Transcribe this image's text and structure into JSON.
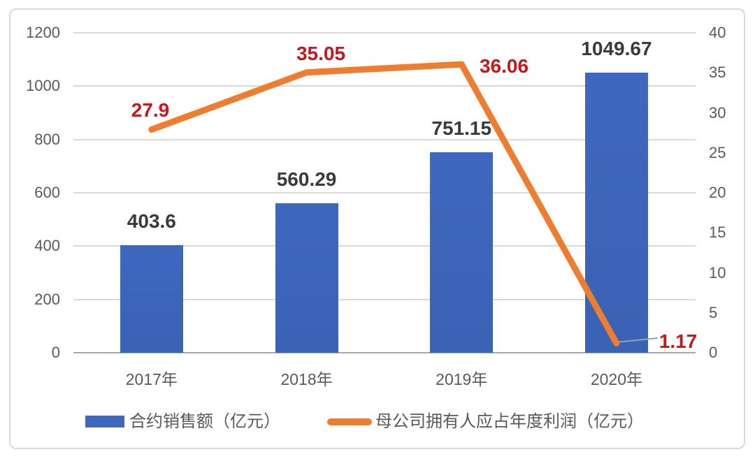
{
  "page": {
    "background": "#ffffff",
    "card_border_color": "#d9d9d9"
  },
  "chart_data": {
    "type": "bar",
    "subtype": "combo-bar-line-dual-axis",
    "categories": [
      "2017年",
      "2018年",
      "2019年",
      "2020年"
    ],
    "series": [
      {
        "name": "合约销售额（亿元）",
        "type": "bar",
        "axis": "left",
        "color": "#3e68be",
        "values": [
          403.6,
          560.29,
          751.15,
          1049.67
        ],
        "data_labels": [
          "403.6",
          "560.29",
          "751.15",
          "1049.67"
        ],
        "label_color": "#3a3a3a"
      },
      {
        "name": "母公司拥有人应占年度利润（亿元）",
        "type": "line",
        "axis": "right",
        "color": "#ed7d31",
        "values": [
          27.9,
          35.05,
          36.06,
          1.17
        ],
        "data_labels": [
          "27.9",
          "35.05",
          "36.06",
          "1.17"
        ],
        "label_color": "#c5171e"
      }
    ],
    "left_axis": {
      "min": 0,
      "max": 1200,
      "step": 200,
      "tick_labels": [
        "0",
        "200",
        "400",
        "600",
        "800",
        "1000",
        "1200"
      ]
    },
    "right_axis": {
      "min": 0,
      "max": 40,
      "step": 5,
      "tick_labels": [
        "0",
        "5",
        "10",
        "15",
        "20",
        "25",
        "30",
        "35",
        "40"
      ]
    },
    "grid": true,
    "legend_position": "bottom",
    "tick_color": "#595959",
    "gridline_color": "#d9d9d9",
    "axisline_color": "#a6a6a6",
    "leader_line_color": "#9aa3ad"
  }
}
